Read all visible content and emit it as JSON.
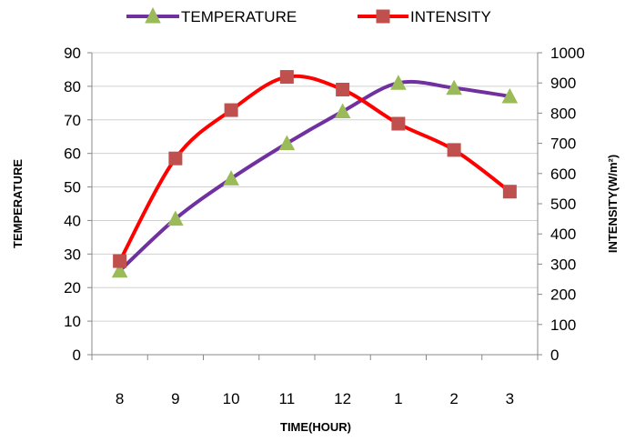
{
  "chart_data": {
    "type": "line",
    "categories": [
      "8",
      "9",
      "10",
      "11",
      "12",
      "1",
      "2",
      "3"
    ],
    "xlabel": "TIME(HOUR)",
    "ylabel": "TEMPERATURE",
    "y2label": "INTENSITY(W/m²)",
    "ylim": [
      0,
      90
    ],
    "y2lim": [
      0,
      1000
    ],
    "yticks": [
      "0",
      "10",
      "20",
      "30",
      "40",
      "50",
      "60",
      "70",
      "80",
      "90"
    ],
    "y2ticks": [
      "0",
      "100",
      "200",
      "300",
      "400",
      "500",
      "600",
      "700",
      "800",
      "900",
      "1000"
    ],
    "grid": true,
    "legend_position": "top",
    "series": [
      {
        "name": "TEMPERATURE",
        "axis": "left",
        "values": [
          25,
          40.5,
          52.5,
          63,
          72.5,
          81,
          79.5,
          77
        ],
        "color": "#7030A0",
        "marker_color": "#9BBB59",
        "marker": "triangle"
      },
      {
        "name": "INTENSITY",
        "axis": "right",
        "values": [
          310,
          650,
          810,
          920,
          878,
          765,
          678,
          540
        ],
        "color": "#FF0000",
        "marker_color": "#C0504D",
        "marker": "square"
      }
    ]
  }
}
